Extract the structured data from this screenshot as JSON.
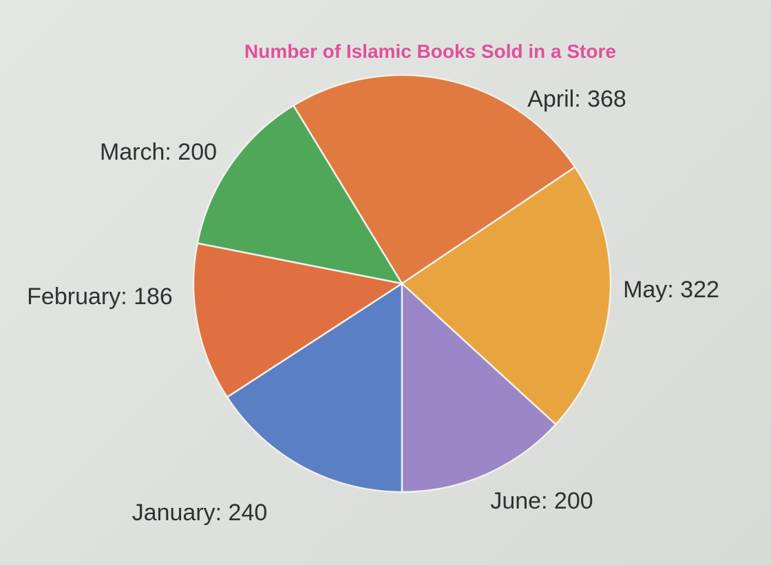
{
  "chart_data": {
    "type": "pie",
    "title": "Number of Islamic Books Sold in a Store",
    "title_color": "#e0509a",
    "slices": [
      {
        "category": "January",
        "value": 240,
        "label": "January: 240",
        "color": "#5b7fc4"
      },
      {
        "category": "February",
        "value": 186,
        "label": "February: 186",
        "color": "#e0703f"
      },
      {
        "category": "March",
        "value": 200,
        "label": "March: 200",
        "color": "#4fa85a"
      },
      {
        "category": "April",
        "value": 368,
        "label": "April: 368",
        "color": "#e07a40"
      },
      {
        "category": "May",
        "value": 322,
        "label": "May: 322",
        "color": "#e8a53f"
      },
      {
        "category": "June",
        "value": 200,
        "label": "June: 200",
        "color": "#9b86c8"
      }
    ],
    "legend": "none",
    "start": "bottom",
    "direction": "clockwise"
  }
}
